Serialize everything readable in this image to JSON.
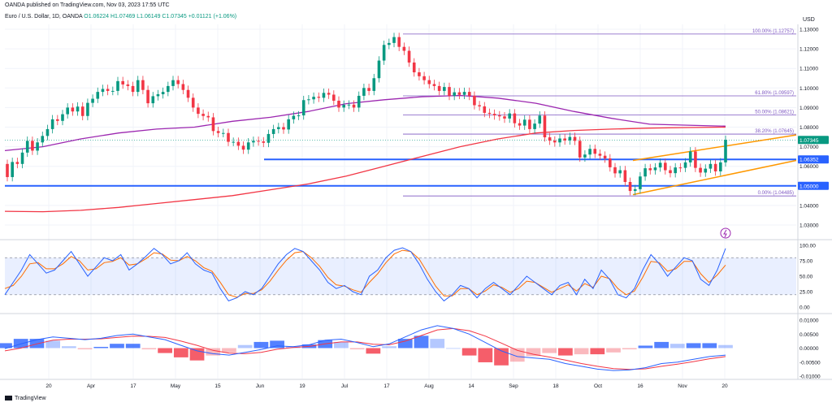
{
  "header": {
    "published": "OANDA published on TradingView.com, Nov 03, 2023 17:55 UTC",
    "title": "Euro / U.S. Dollar, 1D, OANDA",
    "ohlc": "O1.06224  H1.07469  L1.06149  C1.07345  +0.01121 (+1.06%)",
    "currency": "USD"
  },
  "footer": {
    "brand": "TradingView"
  },
  "colors": {
    "bull": "#089981",
    "bear": "#f23645",
    "sma_slow": "#f23645",
    "sma_mid": "#9c27b0",
    "support": "#2962ff",
    "fib": "#7e57c2",
    "channel": "#ff9800",
    "rsi": "#2962ff",
    "rsi_signal": "#ff6d00"
  },
  "icon": "lightning-icon",
  "chart_data": [
    {
      "type": "candlestick",
      "title": "Euro / U.S. Dollar, 1D, OANDA",
      "ylim": [
        1.03,
        1.134
      ],
      "x_ticks": [
        "20",
        "Apr",
        "17",
        "May",
        "15",
        "Jun",
        "19",
        "Jul",
        "17",
        "Aug",
        "14",
        "Sep",
        "18",
        "Oct",
        "16",
        "Nov",
        "20"
      ],
      "y_ticks": [
        "1.13000",
        "1.12000",
        "1.11000",
        "1.10000",
        "1.09000",
        "1.08000",
        "1.07000",
        "1.06000",
        "1.05000",
        "1.04000",
        "1.03000"
      ],
      "close": [
        1.0545,
        1.0622,
        1.0612,
        1.067,
        1.073,
        1.068,
        1.0722,
        1.0755,
        1.079,
        1.084,
        1.0832,
        1.0866,
        1.09,
        1.088,
        1.0905,
        1.0857,
        1.0924,
        1.0945,
        1.098,
        1.0995,
        1.0985,
        1.0985,
        1.1035,
        1.1018,
        1.101,
        1.098,
        1.104,
        1.099,
        1.0922,
        1.0958,
        1.0968,
        1.098,
        1.101,
        1.104,
        1.102,
        1.099,
        1.095,
        1.09,
        1.0868,
        1.0857,
        1.085,
        1.078,
        1.077,
        1.077,
        1.0725,
        1.0725,
        1.0705,
        1.0685,
        1.0722,
        1.073,
        1.0727,
        1.072,
        1.0765,
        1.079,
        1.08,
        1.0788,
        1.084,
        1.0858,
        1.086,
        1.0938,
        1.0942,
        1.0955,
        1.095,
        1.0975,
        1.0966,
        1.0935,
        1.09,
        1.0914,
        1.0915,
        1.09,
        1.096,
        1.1,
        1.0985,
        1.105,
        1.114,
        1.122,
        1.123,
        1.126,
        1.121,
        1.119,
        1.113,
        1.108,
        1.106,
        1.104,
        1.102,
        1.101,
        1.0985,
        1.1005,
        1.096,
        1.0978,
        1.0965,
        1.098,
        1.096,
        1.0912,
        1.0906,
        1.0873,
        1.0868,
        1.086,
        1.0855,
        1.0844,
        1.087,
        1.082,
        1.0808,
        1.0838,
        1.079,
        1.0818,
        1.0859,
        1.0748,
        1.0731,
        1.0722,
        1.0742,
        1.0732,
        1.075,
        1.073,
        1.0645,
        1.066,
        1.0689,
        1.0664,
        1.0654,
        1.064,
        1.0595,
        1.0564,
        1.058,
        1.052,
        1.0474,
        1.0483,
        1.0548,
        1.059,
        1.058,
        1.0594,
        1.0618,
        1.058,
        1.0565,
        1.0594,
        1.0592,
        1.062,
        1.0676,
        1.0592,
        1.0568,
        1.0588,
        1.0612,
        1.0574,
        1.062,
        1.0735
      ],
      "levels": [
        {
          "label": "1.06352",
          "value": 1.06352
        },
        {
          "label": "1.05000",
          "value": 1.05
        },
        {
          "label": "1.07345",
          "value": 1.07345
        }
      ],
      "fibonacci": [
        {
          "label": "100.00% (1.12757)",
          "value": 1.12757
        },
        {
          "label": "61.80% (1.09597)",
          "value": 1.09597
        },
        {
          "label": "50.00% (1.08621)",
          "value": 1.08621
        },
        {
          "label": "38.20% (1.07645)",
          "value": 1.07645
        },
        {
          "label": "0.00% (1.04485)",
          "value": 1.04485
        }
      ],
      "moving_averages": [
        {
          "values": [
            1.068,
            1.07,
            1.074,
            1.077,
            1.079,
            1.08,
            1.083,
            1.085,
            1.088,
            1.092,
            1.094,
            1.0955,
            1.0962,
            1.0948,
            1.0922,
            1.088,
            1.0845,
            1.0815,
            1.081,
            1.0805
          ]
        },
        {
          "values": [
            1.037,
            1.0368,
            1.0375,
            1.039,
            1.041,
            1.043,
            1.045,
            1.048,
            1.051,
            1.055,
            1.06,
            1.065,
            1.07,
            1.074,
            1.077,
            1.0783,
            1.079,
            1.0795,
            1.0798,
            1.08
          ]
        }
      ],
      "channel": {
        "upper": [
          1.063,
          1.076
        ],
        "lower": [
          1.0455,
          1.063
        ]
      }
    },
    {
      "type": "line",
      "name": "RSI",
      "ylim": [
        0,
        100
      ],
      "y_ticks": [
        "100.00",
        "75.00",
        "50.00",
        "25.00",
        "0.00"
      ],
      "band": [
        20,
        80
      ],
      "series_rsi": [
        20,
        40,
        60,
        85,
        70,
        55,
        60,
        75,
        90,
        70,
        50,
        65,
        80,
        75,
        85,
        60,
        70,
        82,
        95,
        85,
        70,
        75,
        88,
        70,
        60,
        55,
        30,
        10,
        15,
        25,
        20,
        30,
        50,
        70,
        85,
        95,
        90,
        75,
        60,
        40,
        30,
        35,
        25,
        20,
        50,
        60,
        80,
        92,
        96,
        90,
        70,
        45,
        25,
        10,
        20,
        35,
        30,
        15,
        30,
        40,
        30,
        20,
        35,
        50,
        40,
        30,
        20,
        35,
        40,
        20,
        45,
        30,
        60,
        45,
        20,
        15,
        30,
        60,
        85,
        70,
        50,
        65,
        80,
        75,
        45,
        35,
        60,
        95
      ],
      "series_signal": [
        30,
        35,
        50,
        70,
        72,
        62,
        62,
        70,
        82,
        75,
        60,
        62,
        72,
        74,
        80,
        68,
        70,
        78,
        88,
        86,
        76,
        75,
        82,
        75,
        64,
        58,
        40,
        20,
        16,
        22,
        22,
        28,
        42,
        60,
        76,
        88,
        90,
        80,
        66,
        48,
        36,
        34,
        28,
        24,
        40,
        54,
        72,
        86,
        92,
        90,
        78,
        56,
        34,
        18,
        18,
        30,
        30,
        20,
        26,
        36,
        32,
        24,
        30,
        42,
        40,
        32,
        24,
        30,
        36,
        26,
        38,
        32,
        50,
        46,
        30,
        20,
        26,
        48,
        74,
        72,
        58,
        62,
        74,
        74,
        54,
        40,
        52,
        68
      ]
    },
    {
      "type": "bar",
      "name": "MACD",
      "ylim": [
        -0.01,
        0.01
      ],
      "y_ticks": [
        "0.01000",
        "0.00500",
        "0.00000",
        "-0.00500",
        "-0.01000"
      ],
      "macd": [
        -0.0002,
        0.0015,
        0.003,
        0.004,
        0.0035,
        0.003,
        0.0035,
        0.0045,
        0.005,
        0.004,
        0.003,
        0.001,
        -0.001,
        -0.002,
        -0.0025,
        -0.0015,
        -0.0005,
        0.0008,
        0.0005,
        0.0012,
        0.0028,
        0.0032,
        0.002,
        0.0005,
        0.0015,
        0.004,
        0.0065,
        0.008,
        0.007,
        0.005,
        0.002,
        -0.001,
        -0.003,
        -0.0035,
        -0.004,
        -0.0055,
        -0.0065,
        -0.0075,
        -0.008,
        -0.0078,
        -0.007,
        -0.0055,
        -0.005,
        -0.004,
        -0.003,
        -0.0025
      ],
      "signal": [
        -0.001,
        0.0,
        0.0015,
        0.0028,
        0.0032,
        0.0032,
        0.0033,
        0.0038,
        0.0043,
        0.0042,
        0.0038,
        0.0025,
        0.001,
        -0.0008,
        -0.0018,
        -0.002,
        -0.0015,
        -0.0004,
        0.0002,
        0.0006,
        0.0015,
        0.0022,
        0.0022,
        0.0014,
        0.0012,
        0.0025,
        0.0045,
        0.0065,
        0.007,
        0.0062,
        0.0043,
        0.0018,
        -0.0008,
        -0.0022,
        -0.0032,
        -0.0043,
        -0.0055,
        -0.0065,
        -0.0073,
        -0.0076,
        -0.0074,
        -0.0065,
        -0.0057,
        -0.0048,
        -0.0038,
        -0.003
      ]
    }
  ]
}
